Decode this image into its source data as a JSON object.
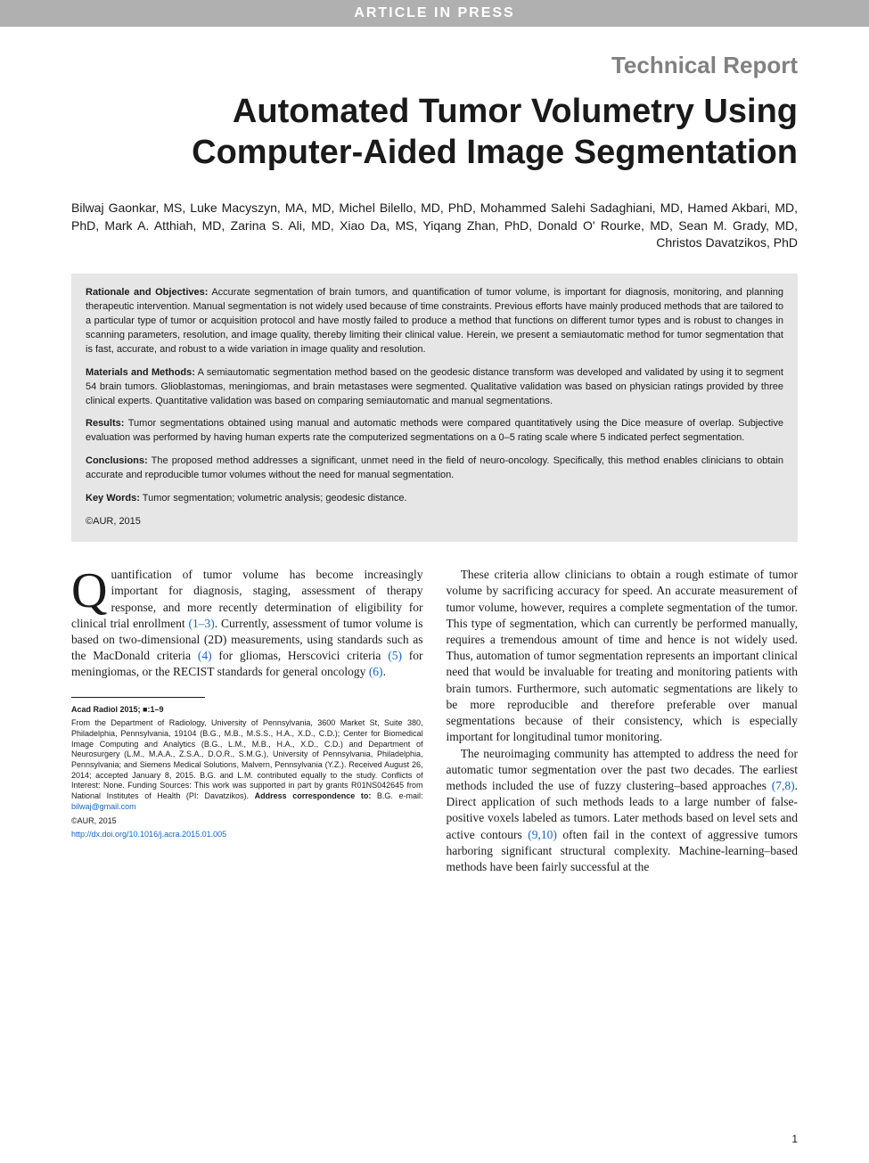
{
  "banner": "ARTICLE IN PRESS",
  "section_label": "Technical Report",
  "title": "Automated Tumor Volumetry Using Computer-Aided Image Segmentation",
  "authors": "Bilwaj Gaonkar, MS, Luke Macyszyn, MA, MD, Michel Bilello, MD, PhD, Mohammed Salehi Sadaghiani, MD, Hamed Akbari, MD, PhD, Mark A. Atthiah, MD, Zarina S. Ali, MD, Xiao Da, MS, Yiqang Zhan, PhD, Donald O' Rourke, MD, Sean M. Grady, MD, Christos Davatzikos, PhD",
  "abstract": {
    "rationale_label": "Rationale and Objectives:",
    "rationale": " Accurate segmentation of brain tumors, and quantification of tumor volume, is important for diagnosis, monitoring, and planning therapeutic intervention. Manual segmentation is not widely used because of time constraints. Previous efforts have mainly produced methods that are tailored to a particular type of tumor or acquisition protocol and have mostly failed to produce a method that functions on different tumor types and is robust to changes in scanning parameters, resolution, and image quality, thereby limiting their clinical value. Herein, we present a semiautomatic method for tumor segmentation that is fast, accurate, and robust to a wide variation in image quality and resolution.",
    "methods_label": "Materials and Methods:",
    "methods": " A semiautomatic segmentation method based on the geodesic distance transform was developed and validated by using it to segment 54 brain tumors. Glioblastomas, meningiomas, and brain metastases were segmented. Qualitative validation was based on physician ratings provided by three clinical experts. Quantitative validation was based on comparing semiautomatic and manual segmentations.",
    "results_label": "Results:",
    "results": " Tumor segmentations obtained using manual and automatic methods were compared quantitatively using the Dice measure of overlap. Subjective evaluation was performed by having human experts rate the computerized segmentations on a 0–5 rating scale where 5 indicated perfect segmentation.",
    "conclusions_label": "Conclusions:",
    "conclusions": " The proposed method addresses a significant, unmet need in the field of neuro-oncology. Specifically, this method enables clinicians to obtain accurate and reproducible tumor volumes without the need for manual segmentation.",
    "keywords_label": "Key Words:",
    "keywords": " Tumor segmentation; volumetric analysis; geodesic distance.",
    "copyright": "©AUR, 2015"
  },
  "body": {
    "col1": {
      "dropcap": "Q",
      "p1_a": "uantification of tumor volume has become increasingly important for diagnosis, staging, assessment of therapy response, and more recently determination of eligibility for clinical trial enrollment ",
      "p1_ref1": "(1–3)",
      "p1_b": ". Currently, assessment of tumor volume is based on two-dimensional (2D) measurements, using standards such as the MacDonald criteria ",
      "p1_ref2": "(4)",
      "p1_c": " for gliomas, Herscovici criteria ",
      "p1_ref3": "(5)",
      "p1_d": " for meningiomas, or the RECIST standards for general oncology ",
      "p1_ref4": "(6)",
      "p1_e": "."
    },
    "col2": {
      "p1": "These criteria allow clinicians to obtain a rough estimate of tumor volume by sacrificing accuracy for speed. An accurate measurement of tumor volume, however, requires a complete segmentation of the tumor. This type of segmentation, which can currently be performed manually, requires a tremendous amount of time and hence is not widely used. Thus, automation of tumor segmentation represents an important clinical need that would be invaluable for treating and monitoring patients with brain tumors. Furthermore, such automatic segmentations are likely to be more reproducible and therefore preferable over manual segmentations because of their consistency, which is especially important for longitudinal tumor monitoring.",
      "p2_a": "The neuroimaging community has attempted to address the need for automatic tumor segmentation over the past two decades. The earliest methods included the use of fuzzy clustering–based approaches ",
      "p2_ref1": "(7,8)",
      "p2_b": ". Direct application of such methods leads to a large number of false-positive voxels labeled as tumors. Later methods based on level sets and active contours ",
      "p2_ref2": "(9,10)",
      "p2_c": " often fail in the context of aggressive tumors harboring significant structural complexity. Machine-learning–based methods have been fairly successful at the"
    }
  },
  "footnote": {
    "citation_bold": "Acad Radiol 2015; ■:1–9",
    "affil": "From the Department of Radiology, University of Pennsylvania, 3600 Market St, Suite 380, Philadelphia, Pennsylvania, 19104 (B.G., M.B., M.S.S., H.A., X.D., C.D.); Center for Biomedical Image Computing and Analytics (B.G., L.M., M.B., H.A., X.D., C.D.) and Department of Neurosurgery (L.M., M.A.A., Z.S.A., D.O.R., S.M.G.), University of Pennsylvania, Philadelphia, Pennsylvania; and Siemens Medical Solutions, Malvern, Pennsylvania (Y.Z.). Received August 26, 2014; accepted January 8, 2015. B.G. and L.M. contributed equally to the study. Conflicts of Interest: None. Funding Sources: This work was supported in part by grants R01NS042645 from National Institutes of Health (PI: Davatzikos). ",
    "corr_bold": "Address correspondence to:",
    "corr_text": " B.G. e-mail: ",
    "email": "bilwaj@gmail.com",
    "copyright2": "©AUR, 2015",
    "doi": "http://dx.doi.org/10.1016/j.acra.2015.01.005"
  },
  "page_number": "1",
  "colors": {
    "banner_bg": "#b0b0b0",
    "banner_fg": "#ffffff",
    "section_label": "#808080",
    "abstract_bg": "#e6e6e6",
    "link": "#1565c0",
    "text": "#1a1a1a"
  }
}
